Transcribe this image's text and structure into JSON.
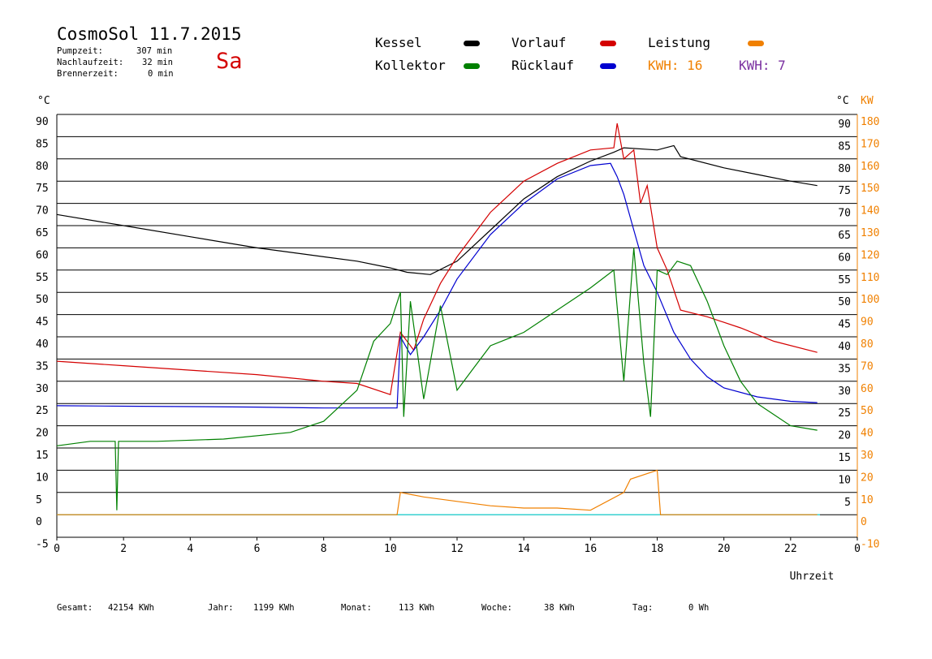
{
  "header": {
    "title": "CosmoSol 11.7.2015",
    "day": "Sa",
    "stats": [
      {
        "label": "Pumpzeit:",
        "value": "307 min"
      },
      {
        "label": "Nachlaufzeit:",
        "value": "32 min"
      },
      {
        "label": "Brennerzeit:",
        "value": "0 min"
      }
    ]
  },
  "legend": {
    "kessel": "Kessel",
    "kollektor": "Kollektor",
    "vorlauf": "Vorlauf",
    "ruecklauf": "Rücklauf",
    "leistung": "Leistung",
    "kwh_orange": "KWH: 16",
    "kwh_purple": "KWH: 7"
  },
  "colors": {
    "kessel": "#000000",
    "kollektor": "#008000",
    "vorlauf": "#d40000",
    "ruecklauf": "#0000d0",
    "leistung": "#f08000",
    "purple": "#7a2fa0",
    "cyan": "#30d8d8"
  },
  "footer": {
    "gesamt_label": "Gesamt:",
    "gesamt_value": "42154 KWh",
    "jahr_label": "Jahr:",
    "jahr_value": "1199 KWh",
    "monat_label": "Monat:",
    "monat_value": "113 KWh",
    "woche_label": "Woche:",
    "woche_value": "38 KWh",
    "tag_label": "Tag:",
    "tag_value": "0 Wh"
  },
  "chart_data": {
    "type": "line",
    "xlabel": "Uhrzeit",
    "ylabel_left": "°C",
    "ylabel_right_1": "°C",
    "ylabel_right_2": "KW",
    "xlim": [
      0,
      24
    ],
    "ylim": [
      -5,
      90
    ],
    "x_ticks": [
      "0",
      "2",
      "4",
      "6",
      "8",
      "10",
      "12",
      "14",
      "16",
      "18",
      "20",
      "22",
      "0"
    ],
    "y_ticks_left": [
      "90",
      "85",
      "80",
      "75",
      "70",
      "65",
      "60",
      "55",
      "50",
      "45",
      "40",
      "35",
      "30",
      "25",
      "20",
      "15",
      "10",
      "5",
      "0",
      "-5"
    ],
    "y_ticks_right_c": [
      "90",
      "85",
      "80",
      "75",
      "70",
      "65",
      "60",
      "55",
      "50",
      "45",
      "40",
      "35",
      "30",
      "25",
      "20",
      "15",
      "10",
      "5"
    ],
    "y_ticks_right_kw": [
      "180",
      "170",
      "160",
      "150",
      "140",
      "130",
      "120",
      "110",
      "100",
      "90",
      "80",
      "70",
      "60",
      "50",
      "40",
      "30",
      "20",
      "10",
      "0",
      "-10"
    ],
    "grid": "horizontal",
    "series": [
      {
        "name": "Kessel",
        "color": "#000000",
        "points": [
          [
            0,
            67.5
          ],
          [
            2,
            65
          ],
          [
            4,
            62.5
          ],
          [
            6,
            60
          ],
          [
            8,
            58
          ],
          [
            9,
            57
          ],
          [
            10,
            55.5
          ],
          [
            10.5,
            54.5
          ],
          [
            11.2,
            54
          ],
          [
            12,
            57
          ],
          [
            13,
            64
          ],
          [
            14,
            71
          ],
          [
            15,
            76
          ],
          [
            16,
            79.5
          ],
          [
            16.7,
            81.5
          ],
          [
            17,
            82.5
          ],
          [
            18,
            82
          ],
          [
            18.5,
            83
          ],
          [
            18.7,
            80.5
          ],
          [
            20,
            78
          ],
          [
            21,
            76.5
          ],
          [
            22,
            75
          ],
          [
            22.8,
            74
          ]
        ]
      },
      {
        "name": "Vorlauf",
        "color": "#d40000",
        "points": [
          [
            0,
            34.5
          ],
          [
            2,
            33.5
          ],
          [
            4,
            32.5
          ],
          [
            6,
            31.5
          ],
          [
            8,
            30
          ],
          [
            9,
            29.5
          ],
          [
            10,
            27
          ],
          [
            10.3,
            41
          ],
          [
            10.7,
            37
          ],
          [
            11,
            44
          ],
          [
            11.5,
            52
          ],
          [
            12,
            58
          ],
          [
            13,
            68
          ],
          [
            14,
            75
          ],
          [
            15,
            79
          ],
          [
            16,
            82
          ],
          [
            16.7,
            82.5
          ],
          [
            16.8,
            88
          ],
          [
            17,
            80
          ],
          [
            17.3,
            82
          ],
          [
            17.5,
            70
          ],
          [
            17.7,
            74
          ],
          [
            18,
            60
          ],
          [
            18.3,
            55
          ],
          [
            18.7,
            46
          ],
          [
            19.5,
            44.5
          ],
          [
            20.5,
            42
          ],
          [
            21.5,
            39
          ],
          [
            22.8,
            36.5
          ]
        ]
      },
      {
        "name": "Rücklauf",
        "color": "#0000d0",
        "points": [
          [
            0,
            24.5
          ],
          [
            2,
            24.4
          ],
          [
            4,
            24.3
          ],
          [
            6,
            24.2
          ],
          [
            8,
            24
          ],
          [
            10.2,
            24
          ],
          [
            10.3,
            40
          ],
          [
            10.6,
            36
          ],
          [
            11,
            40
          ],
          [
            11.5,
            46
          ],
          [
            12,
            53
          ],
          [
            13,
            63
          ],
          [
            14,
            70
          ],
          [
            15,
            75.5
          ],
          [
            16,
            78.5
          ],
          [
            16.6,
            79
          ],
          [
            16.8,
            76
          ],
          [
            17,
            72
          ],
          [
            17.3,
            64
          ],
          [
            17.6,
            56
          ],
          [
            18,
            50
          ],
          [
            18.5,
            41
          ],
          [
            19,
            35
          ],
          [
            19.5,
            31
          ],
          [
            20,
            28.5
          ],
          [
            21,
            26.5
          ],
          [
            22,
            25.5
          ],
          [
            22.8,
            25.2
          ]
        ]
      },
      {
        "name": "Kollektor",
        "color": "#008000",
        "points": [
          [
            0,
            15.5
          ],
          [
            1,
            16.5
          ],
          [
            1.75,
            16.5
          ],
          [
            1.8,
            1
          ],
          [
            1.85,
            16.5
          ],
          [
            3,
            16.5
          ],
          [
            5,
            17
          ],
          [
            7,
            18.5
          ],
          [
            8,
            21
          ],
          [
            9,
            28
          ],
          [
            9.5,
            39
          ],
          [
            10,
            43
          ],
          [
            10.3,
            50
          ],
          [
            10.4,
            22
          ],
          [
            10.6,
            48
          ],
          [
            11,
            26
          ],
          [
            11.5,
            47
          ],
          [
            12,
            28
          ],
          [
            12.5,
            33
          ],
          [
            13,
            38
          ],
          [
            14,
            41
          ],
          [
            15,
            46
          ],
          [
            16,
            51
          ],
          [
            16.7,
            55
          ],
          [
            17,
            30
          ],
          [
            17.3,
            60
          ],
          [
            17.6,
            34
          ],
          [
            17.8,
            22
          ],
          [
            18,
            55
          ],
          [
            18.3,
            54
          ],
          [
            18.6,
            57
          ],
          [
            19,
            56
          ],
          [
            19.5,
            48
          ],
          [
            20,
            38
          ],
          [
            20.5,
            30
          ],
          [
            21,
            25
          ],
          [
            22,
            20
          ],
          [
            22.8,
            19
          ]
        ]
      },
      {
        "name": "Leistung",
        "color": "#f08000",
        "points": [
          [
            0,
            0
          ],
          [
            10.2,
            0
          ],
          [
            10.3,
            5
          ],
          [
            11,
            4
          ],
          [
            12,
            3
          ],
          [
            13,
            2
          ],
          [
            14,
            1.5
          ],
          [
            15,
            1.5
          ],
          [
            16,
            1
          ],
          [
            17,
            5
          ],
          [
            17.2,
            8
          ],
          [
            18,
            10
          ],
          [
            18.1,
            0
          ],
          [
            22.8,
            0
          ]
        ]
      }
    ]
  }
}
